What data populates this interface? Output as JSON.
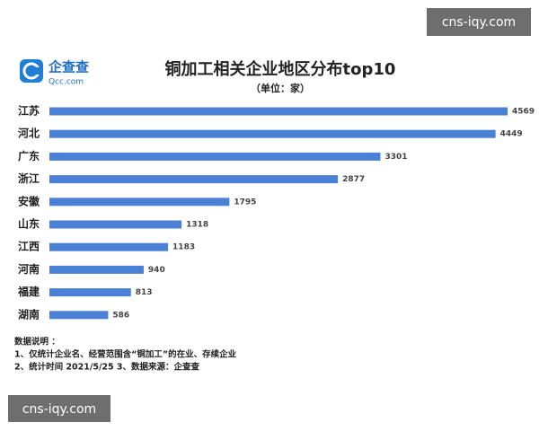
{
  "watermarks": [
    "cns-iqy.com",
    "cns-iqy.com"
  ],
  "logo": {
    "name": "企查查",
    "domain": "Qcc.com"
  },
  "chart_data": {
    "type": "hbar",
    "title": "铜加工相关企业地区分布top10",
    "subtitle": "（单位：家）",
    "categories": [
      "江苏",
      "河北",
      "广东",
      "浙江",
      "安徽",
      "山东",
      "江西",
      "河南",
      "福建",
      "湖南"
    ],
    "values": [
      4569,
      4449,
      3301,
      2877,
      1795,
      1318,
      1183,
      940,
      813,
      586
    ],
    "color": "#4a80d6",
    "notes": [
      "数据说明 ：",
      "1、仅统计企业名、经营范围含“铜加工”的在业、存续企业",
      "2、统计时间  2021/5/25      3、数据来源：企查查"
    ]
  }
}
